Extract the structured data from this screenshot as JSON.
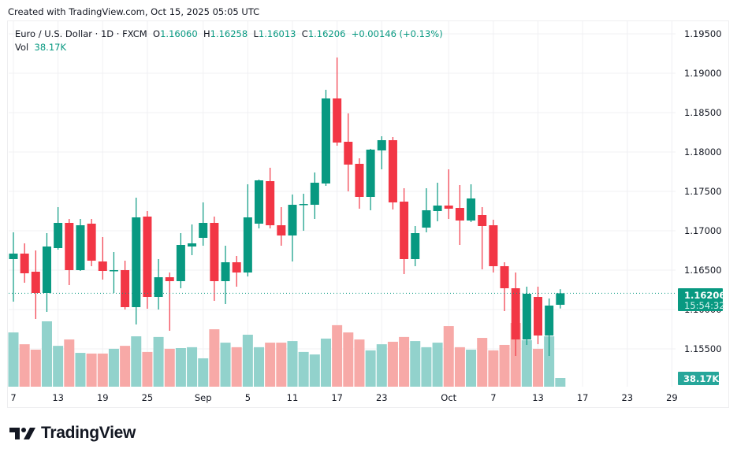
{
  "header": {
    "created_text": "Created with TradingView.com, Oct 15, 2025 05:05 UTC"
  },
  "legend": {
    "symbol": "Euro / U.S. Dollar · 1D · FXCM",
    "o_label": "O",
    "o_value": "1.16060",
    "h_label": "H",
    "h_value": "1.16258",
    "l_label": "L",
    "l_value": "1.16013",
    "c_label": "C",
    "c_value": "1.16206",
    "change": "+0.00146 (+0.13%)",
    "vol_label": "Vol",
    "vol_value": "38.17K"
  },
  "price_badge": {
    "price": "1.16206",
    "countdown": "15:54:32"
  },
  "volume_badge": "38.17K",
  "footer": {
    "logo_text": "TradingView"
  },
  "colors": {
    "up": "#089981",
    "down": "#f23645",
    "up_volume": "#92d2cc",
    "down_volume": "#f7a9a7",
    "grid": "#f0f0f3",
    "axis_text": "#131722"
  },
  "chart_data": {
    "type": "candlestick",
    "title": "Euro / U.S. Dollar · 1D · FXCM",
    "ylim": [
      1.151,
      1.1978
    ],
    "y_ticks": [
      "1.19500",
      "1.19000",
      "1.18500",
      "1.18000",
      "1.17500",
      "1.17000",
      "1.16500",
      "1.16000",
      "1.15500"
    ],
    "y_tick_values": [
      1.195,
      1.19,
      1.185,
      1.18,
      1.175,
      1.17,
      1.165,
      1.16,
      1.155
    ],
    "x_ticks": [
      {
        "label": "7",
        "index": 0
      },
      {
        "label": "13",
        "index": 4
      },
      {
        "label": "19",
        "index": 8
      },
      {
        "label": "25",
        "index": 12
      },
      {
        "label": "Sep",
        "index": 17
      },
      {
        "label": "5",
        "index": 21
      },
      {
        "label": "11",
        "index": 25
      },
      {
        "label": "17",
        "index": 29
      },
      {
        "label": "23",
        "index": 33
      },
      {
        "label": "Oct",
        "index": 39
      },
      {
        "label": "7",
        "index": 43
      },
      {
        "label": "13",
        "index": 47
      },
      {
        "label": "17",
        "index": 51
      },
      {
        "label": "23",
        "index": 55
      },
      {
        "label": "29",
        "index": 59
      }
    ],
    "total_slots": 60,
    "last_price": 1.16206,
    "candles": [
      {
        "o": 1.1664,
        "h": 1.1698,
        "l": 1.161,
        "c": 1.1671,
        "v": 239
      },
      {
        "o": 1.1671,
        "h": 1.1684,
        "l": 1.1634,
        "c": 1.1646,
        "v": 187
      },
      {
        "o": 1.1648,
        "h": 1.1675,
        "l": 1.1588,
        "c": 1.1621,
        "v": 163
      },
      {
        "o": 1.1621,
        "h": 1.1697,
        "l": 1.1597,
        "c": 1.168,
        "v": 288
      },
      {
        "o": 1.1678,
        "h": 1.173,
        "l": 1.1676,
        "c": 1.171,
        "v": 180
      },
      {
        "o": 1.171,
        "h": 1.1715,
        "l": 1.1631,
        "c": 1.165,
        "v": 208
      },
      {
        "o": 1.165,
        "h": 1.1715,
        "l": 1.1649,
        "c": 1.1707,
        "v": 149
      },
      {
        "o": 1.1709,
        "h": 1.1715,
        "l": 1.1655,
        "c": 1.1662,
        "v": 146
      },
      {
        "o": 1.1661,
        "h": 1.1692,
        "l": 1.1638,
        "c": 1.1649,
        "v": 146
      },
      {
        "o": 1.1649,
        "h": 1.1673,
        "l": 1.1621,
        "c": 1.165,
        "v": 167
      },
      {
        "o": 1.165,
        "h": 1.1662,
        "l": 1.16,
        "c": 1.1603,
        "v": 180
      },
      {
        "o": 1.1603,
        "h": 1.1742,
        "l": 1.1581,
        "c": 1.1717,
        "v": 222
      },
      {
        "o": 1.1718,
        "h": 1.1725,
        "l": 1.1601,
        "c": 1.1616,
        "v": 153
      },
      {
        "o": 1.1616,
        "h": 1.1664,
        "l": 1.16,
        "c": 1.1641,
        "v": 219
      },
      {
        "o": 1.1641,
        "h": 1.1647,
        "l": 1.1573,
        "c": 1.1636,
        "v": 167
      },
      {
        "o": 1.1636,
        "h": 1.1697,
        "l": 1.1627,
        "c": 1.1682,
        "v": 170
      },
      {
        "o": 1.168,
        "h": 1.1708,
        "l": 1.1669,
        "c": 1.1684,
        "v": 174
      },
      {
        "o": 1.1691,
        "h": 1.1736,
        "l": 1.1681,
        "c": 1.171,
        "v": 125
      },
      {
        "o": 1.171,
        "h": 1.1718,
        "l": 1.1611,
        "c": 1.1636,
        "v": 253
      },
      {
        "o": 1.1636,
        "h": 1.1681,
        "l": 1.1607,
        "c": 1.166,
        "v": 194
      },
      {
        "o": 1.166,
        "h": 1.1668,
        "l": 1.1629,
        "c": 1.1647,
        "v": 174
      },
      {
        "o": 1.1647,
        "h": 1.1759,
        "l": 1.1642,
        "c": 1.1717,
        "v": 229
      },
      {
        "o": 1.1709,
        "h": 1.1765,
        "l": 1.1703,
        "c": 1.1764,
        "v": 174
      },
      {
        "o": 1.1763,
        "h": 1.178,
        "l": 1.1703,
        "c": 1.1707,
        "v": 194
      },
      {
        "o": 1.1707,
        "h": 1.173,
        "l": 1.1681,
        "c": 1.1694,
        "v": 194
      },
      {
        "o": 1.1694,
        "h": 1.1746,
        "l": 1.1661,
        "c": 1.1733,
        "v": 201
      },
      {
        "o": 1.1733,
        "h": 1.1747,
        "l": 1.17,
        "c": 1.1734,
        "v": 153
      },
      {
        "o": 1.1733,
        "h": 1.1774,
        "l": 1.1715,
        "c": 1.1761,
        "v": 142
      },
      {
        "o": 1.176,
        "h": 1.1879,
        "l": 1.1757,
        "c": 1.1868,
        "v": 212
      },
      {
        "o": 1.1868,
        "h": 1.192,
        "l": 1.1808,
        "c": 1.1812,
        "v": 271
      },
      {
        "o": 1.1813,
        "h": 1.1849,
        "l": 1.175,
        "c": 1.1784,
        "v": 239
      },
      {
        "o": 1.1785,
        "h": 1.1792,
        "l": 1.1728,
        "c": 1.1743,
        "v": 208
      },
      {
        "o": 1.1743,
        "h": 1.1804,
        "l": 1.1726,
        "c": 1.1803,
        "v": 160
      },
      {
        "o": 1.1802,
        "h": 1.182,
        "l": 1.1778,
        "c": 1.1815,
        "v": 187
      },
      {
        "o": 1.1815,
        "h": 1.1819,
        "l": 1.1727,
        "c": 1.1736,
        "v": 198
      },
      {
        "o": 1.1737,
        "h": 1.1754,
        "l": 1.1645,
        "c": 1.1664,
        "v": 219
      },
      {
        "o": 1.1664,
        "h": 1.1706,
        "l": 1.1655,
        "c": 1.1697,
        "v": 201
      },
      {
        "o": 1.1704,
        "h": 1.1754,
        "l": 1.1698,
        "c": 1.1726,
        "v": 174
      },
      {
        "o": 1.1725,
        "h": 1.1761,
        "l": 1.1712,
        "c": 1.1732,
        "v": 194
      },
      {
        "o": 1.1732,
        "h": 1.1778,
        "l": 1.1715,
        "c": 1.1728,
        "v": 267
      },
      {
        "o": 1.1729,
        "h": 1.1758,
        "l": 1.1682,
        "c": 1.1713,
        "v": 174
      },
      {
        "o": 1.1713,
        "h": 1.1759,
        "l": 1.1711,
        "c": 1.1741,
        "v": 163
      },
      {
        "o": 1.172,
        "h": 1.173,
        "l": 1.1651,
        "c": 1.1706,
        "v": 215
      },
      {
        "o": 1.1707,
        "h": 1.1714,
        "l": 1.1647,
        "c": 1.1655,
        "v": 160
      },
      {
        "o": 1.1655,
        "h": 1.166,
        "l": 1.1598,
        "c": 1.1627,
        "v": 184
      },
      {
        "o": 1.1627,
        "h": 1.1647,
        "l": 1.1541,
        "c": 1.1562,
        "v": 281
      },
      {
        "o": 1.1562,
        "h": 1.1629,
        "l": 1.1555,
        "c": 1.162,
        "v": 205
      },
      {
        "o": 1.1616,
        "h": 1.1629,
        "l": 1.1556,
        "c": 1.1567,
        "v": 167
      },
      {
        "o": 1.1567,
        "h": 1.1614,
        "l": 1.1541,
        "c": 1.1605,
        "v": 222
      },
      {
        "o": 1.1606,
        "h": 1.16258,
        "l": 1.16013,
        "c": 1.16206,
        "v": 38.17
      }
    ],
    "volume_unit": "K",
    "legend": "top-left"
  }
}
